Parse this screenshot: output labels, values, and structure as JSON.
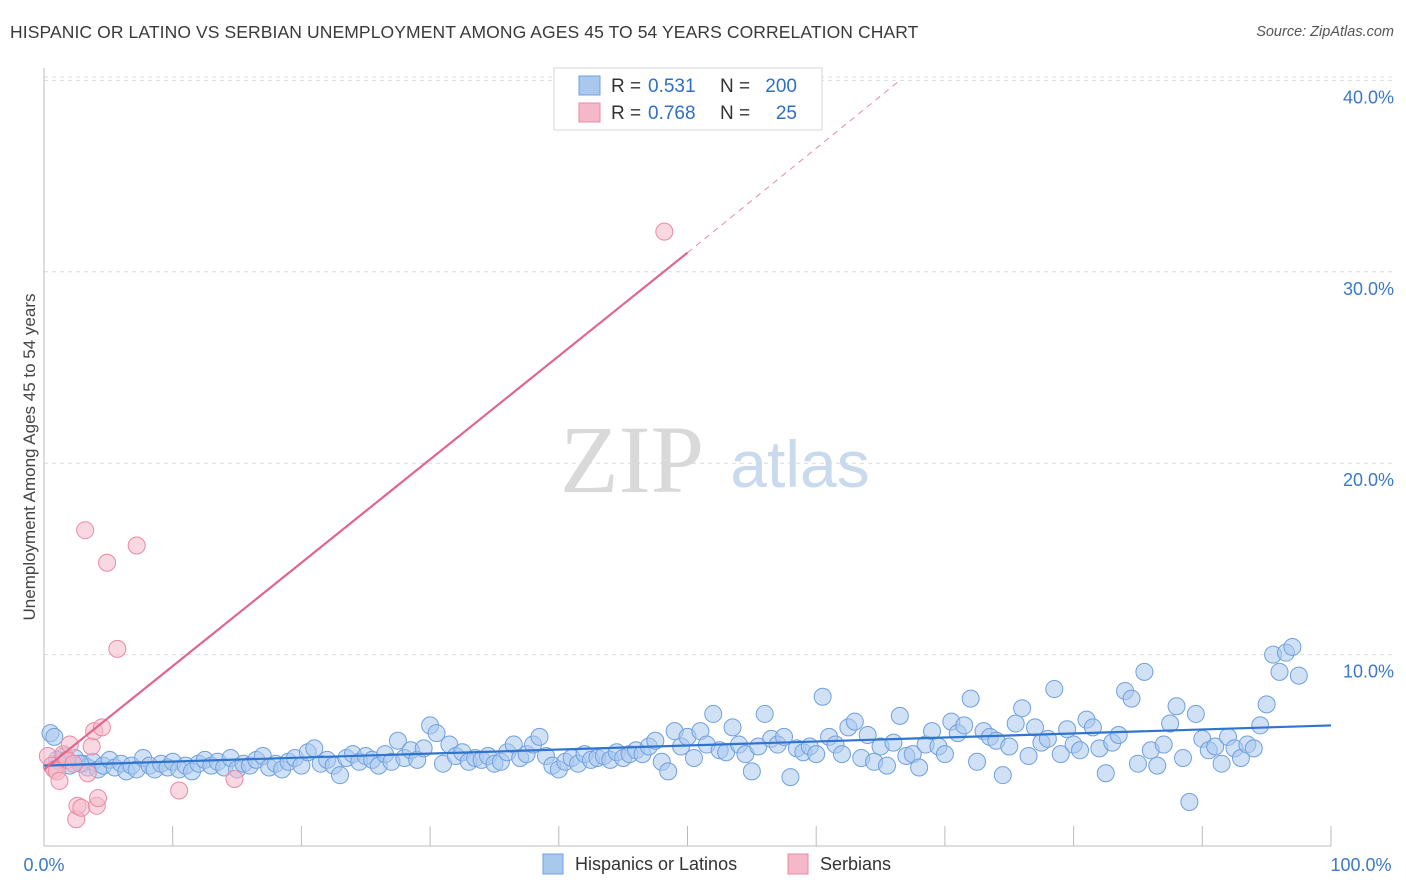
{
  "title": "HISPANIC OR LATINO VS SERBIAN UNEMPLOYMENT AMONG AGES 45 TO 54 YEARS CORRELATION CHART",
  "source": "Source: ZipAtlas.com",
  "watermark": {
    "zip": "ZIP",
    "atlas": "atlas"
  },
  "colors": {
    "blue_fill": "#a9c8ee",
    "blue_stroke": "#6fa0dd",
    "blue_line": "#2f74d0",
    "pink_fill": "#f5b8c8",
    "pink_stroke": "#e98aa5",
    "pink_line": "#e0668e",
    "value_text": "#2f6fc6",
    "grid": "#dcdcdc"
  },
  "legend": {
    "rows": [
      {
        "r_label": "R =",
        "r_value": "0.531",
        "n_label": "N =",
        "n_value": "200",
        "series": "blue"
      },
      {
        "r_label": "R =",
        "r_value": "0.768",
        "n_label": "N =",
        "n_value": "25",
        "series": "pink"
      }
    ]
  },
  "bottom_legend": [
    "Hispanics or Latinos",
    "Serbians"
  ],
  "chart_data": {
    "type": "scatter",
    "title": "HISPANIC OR LATINO VS SERBIAN UNEMPLOYMENT AMONG AGES 45 TO 54 YEARS CORRELATION CHART",
    "ylabel": "Unemployment Among Ages 45 to 54 years",
    "xlim": [
      0,
      100
    ],
    "ylim": [
      0,
      42
    ],
    "x_tick_labels": [
      "0.0%",
      "100.0%"
    ],
    "y_ticks": [
      10,
      20,
      30,
      40
    ],
    "y_tick_labels": [
      "10.0%",
      "20.0%",
      "30.0%",
      "40.0%"
    ],
    "grid": true,
    "legend_position": "top-center",
    "series": [
      {
        "name": "Hispanics or Latinos",
        "color": "blue",
        "trend": {
          "x": [
            0,
            100
          ],
          "y": [
            4.2,
            6.3
          ]
        },
        "points": [
          [
            0.5,
            5.9
          ],
          [
            0.8,
            5.7
          ],
          [
            1.2,
            4.4
          ],
          [
            1.6,
            4.7
          ],
          [
            2.0,
            4.2
          ],
          [
            2.4,
            4.6
          ],
          [
            3.0,
            4.3
          ],
          [
            3.4,
            4.1
          ],
          [
            3.8,
            4.4
          ],
          [
            4.2,
            4.0
          ],
          [
            4.6,
            4.2
          ],
          [
            5.1,
            4.5
          ],
          [
            5.5,
            4.1
          ],
          [
            6.0,
            4.3
          ],
          [
            6.4,
            3.9
          ],
          [
            6.8,
            4.2
          ],
          [
            7.2,
            4.0
          ],
          [
            7.7,
            4.6
          ],
          [
            8.2,
            4.2
          ],
          [
            8.6,
            4.0
          ],
          [
            9.1,
            4.3
          ],
          [
            9.6,
            4.1
          ],
          [
            10.0,
            4.4
          ],
          [
            10.5,
            4.0
          ],
          [
            11.0,
            4.2
          ],
          [
            11.5,
            3.9
          ],
          [
            12.0,
            4.3
          ],
          [
            12.5,
            4.5
          ],
          [
            13.0,
            4.2
          ],
          [
            13.5,
            4.4
          ],
          [
            14.0,
            4.1
          ],
          [
            14.5,
            4.6
          ],
          [
            15.0,
            4.0
          ],
          [
            15.5,
            4.3
          ],
          [
            16.0,
            4.2
          ],
          [
            16.5,
            4.5
          ],
          [
            17.0,
            4.7
          ],
          [
            17.5,
            4.1
          ],
          [
            18.0,
            4.3
          ],
          [
            18.5,
            4.0
          ],
          [
            19.0,
            4.4
          ],
          [
            19.5,
            4.6
          ],
          [
            20.0,
            4.2
          ],
          [
            20.5,
            4.9
          ],
          [
            21.0,
            5.1
          ],
          [
            21.5,
            4.3
          ],
          [
            22.0,
            4.5
          ],
          [
            22.5,
            4.2
          ],
          [
            23.0,
            3.7
          ],
          [
            23.5,
            4.6
          ],
          [
            24.0,
            4.8
          ],
          [
            24.5,
            4.4
          ],
          [
            25.0,
            4.7
          ],
          [
            25.5,
            4.5
          ],
          [
            26.0,
            4.2
          ],
          [
            26.5,
            4.8
          ],
          [
            27.0,
            4.4
          ],
          [
            27.5,
            5.5
          ],
          [
            28.0,
            4.6
          ],
          [
            28.5,
            5.0
          ],
          [
            29.0,
            4.5
          ],
          [
            29.5,
            5.1
          ],
          [
            30.0,
            6.3
          ],
          [
            30.5,
            5.9
          ],
          [
            31.0,
            4.3
          ],
          [
            31.5,
            5.3
          ],
          [
            32.0,
            4.7
          ],
          [
            32.5,
            4.9
          ],
          [
            33.0,
            4.4
          ],
          [
            33.5,
            4.6
          ],
          [
            34.0,
            4.5
          ],
          [
            34.5,
            4.7
          ],
          [
            35.0,
            4.3
          ],
          [
            35.5,
            4.4
          ],
          [
            36.0,
            4.9
          ],
          [
            36.5,
            5.3
          ],
          [
            37.0,
            4.6
          ],
          [
            37.5,
            4.8
          ],
          [
            38.0,
            5.3
          ],
          [
            38.5,
            5.7
          ],
          [
            39.0,
            4.7
          ],
          [
            39.5,
            4.2
          ],
          [
            40.0,
            4.0
          ],
          [
            40.5,
            4.4
          ],
          [
            41.0,
            4.6
          ],
          [
            41.5,
            4.3
          ],
          [
            42.0,
            4.8
          ],
          [
            42.5,
            4.5
          ],
          [
            43.0,
            4.6
          ],
          [
            43.5,
            4.7
          ],
          [
            44.0,
            4.5
          ],
          [
            44.5,
            4.9
          ],
          [
            45.0,
            4.6
          ],
          [
            45.5,
            4.8
          ],
          [
            46.0,
            5.0
          ],
          [
            46.5,
            4.8
          ],
          [
            47.0,
            5.2
          ],
          [
            47.5,
            5.5
          ],
          [
            48.0,
            4.4
          ],
          [
            48.5,
            3.9
          ],
          [
            49.0,
            6.0
          ],
          [
            49.5,
            5.2
          ],
          [
            50.0,
            5.7
          ],
          [
            50.5,
            4.6
          ],
          [
            51.0,
            6.0
          ],
          [
            51.5,
            5.3
          ],
          [
            52.0,
            6.9
          ],
          [
            52.5,
            5.0
          ],
          [
            53.0,
            4.9
          ],
          [
            53.5,
            6.2
          ],
          [
            54.0,
            5.3
          ],
          [
            54.5,
            4.8
          ],
          [
            55.0,
            3.9
          ],
          [
            55.5,
            5.2
          ],
          [
            56.0,
            6.9
          ],
          [
            56.5,
            5.6
          ],
          [
            57.0,
            5.3
          ],
          [
            57.5,
            5.7
          ],
          [
            58.0,
            3.6
          ],
          [
            58.5,
            5.1
          ],
          [
            59.0,
            4.9
          ],
          [
            59.5,
            5.2
          ],
          [
            60.0,
            4.8
          ],
          [
            60.5,
            7.8
          ],
          [
            61.0,
            5.7
          ],
          [
            61.5,
            5.3
          ],
          [
            62.0,
            4.8
          ],
          [
            62.5,
            6.2
          ],
          [
            63.0,
            6.5
          ],
          [
            63.5,
            4.6
          ],
          [
            64.0,
            5.8
          ],
          [
            64.5,
            4.4
          ],
          [
            65.0,
            5.2
          ],
          [
            65.5,
            4.2
          ],
          [
            66.0,
            5.4
          ],
          [
            66.5,
            6.8
          ],
          [
            67.0,
            4.7
          ],
          [
            67.5,
            4.8
          ],
          [
            68.0,
            4.1
          ],
          [
            68.5,
            5.3
          ],
          [
            69.0,
            6.0
          ],
          [
            69.5,
            5.2
          ],
          [
            70.0,
            4.8
          ],
          [
            70.5,
            6.5
          ],
          [
            71.0,
            5.9
          ],
          [
            71.5,
            6.3
          ],
          [
            72.0,
            7.7
          ],
          [
            72.5,
            4.4
          ],
          [
            73.0,
            6.0
          ],
          [
            73.5,
            5.7
          ],
          [
            74.0,
            5.5
          ],
          [
            74.5,
            3.7
          ],
          [
            75.0,
            5.2
          ],
          [
            75.5,
            6.4
          ],
          [
            76.0,
            7.2
          ],
          [
            76.5,
            4.7
          ],
          [
            77.0,
            6.2
          ],
          [
            77.5,
            5.4
          ],
          [
            78.0,
            5.6
          ],
          [
            78.5,
            8.2
          ],
          [
            79.0,
            4.8
          ],
          [
            79.5,
            6.1
          ],
          [
            80.0,
            5.3
          ],
          [
            80.5,
            5.0
          ],
          [
            81.0,
            6.6
          ],
          [
            81.5,
            6.2
          ],
          [
            82.0,
            5.1
          ],
          [
            82.5,
            3.8
          ],
          [
            83.0,
            5.4
          ],
          [
            83.5,
            5.8
          ],
          [
            84.0,
            8.1
          ],
          [
            84.5,
            7.7
          ],
          [
            85.0,
            4.3
          ],
          [
            85.5,
            9.1
          ],
          [
            86.0,
            5.0
          ],
          [
            86.5,
            4.2
          ],
          [
            87.0,
            5.3
          ],
          [
            87.5,
            6.4
          ],
          [
            88.0,
            7.3
          ],
          [
            88.5,
            4.6
          ],
          [
            89.0,
            2.3
          ],
          [
            89.5,
            6.9
          ],
          [
            90.0,
            5.6
          ],
          [
            90.5,
            5.0
          ],
          [
            91.0,
            5.2
          ],
          [
            91.5,
            4.3
          ],
          [
            92.0,
            5.7
          ],
          [
            92.5,
            5.1
          ],
          [
            93.0,
            4.6
          ],
          [
            93.5,
            5.3
          ],
          [
            94.0,
            5.1
          ],
          [
            94.5,
            6.3
          ],
          [
            95.0,
            7.4
          ],
          [
            95.5,
            10.0
          ],
          [
            96.0,
            9.1
          ],
          [
            96.5,
            10.1
          ],
          [
            97.0,
            10.4
          ],
          [
            97.5,
            8.9
          ],
          [
            1.0,
            4.5
          ],
          [
            2.8,
            4.3
          ]
        ]
      },
      {
        "name": "Serbians",
        "color": "pink",
        "trend": {
          "x": [
            0,
            50
          ],
          "y": [
            4.0,
            31.0
          ]
        },
        "trend_extension": {
          "x": [
            50,
            66.5
          ],
          "y": [
            31.0,
            40.0
          ]
        },
        "points": [
          [
            0.3,
            4.7
          ],
          [
            0.6,
            4.2
          ],
          [
            0.8,
            4.0
          ],
          [
            1.0,
            3.9
          ],
          [
            1.2,
            3.4
          ],
          [
            1.5,
            4.8
          ],
          [
            1.8,
            4.5
          ],
          [
            2.0,
            5.3
          ],
          [
            2.3,
            4.3
          ],
          [
            2.5,
            1.4
          ],
          [
            2.6,
            2.1
          ],
          [
            2.9,
            2.0
          ],
          [
            3.2,
            16.5
          ],
          [
            3.4,
            3.8
          ],
          [
            3.7,
            5.2
          ],
          [
            3.9,
            6.0
          ],
          [
            4.1,
            2.1
          ],
          [
            4.2,
            2.5
          ],
          [
            4.5,
            6.2
          ],
          [
            4.9,
            14.8
          ],
          [
            5.7,
            10.3
          ],
          [
            7.2,
            15.7
          ],
          [
            10.5,
            2.9
          ],
          [
            14.8,
            3.5
          ],
          [
            48.2,
            32.1
          ]
        ]
      }
    ]
  }
}
